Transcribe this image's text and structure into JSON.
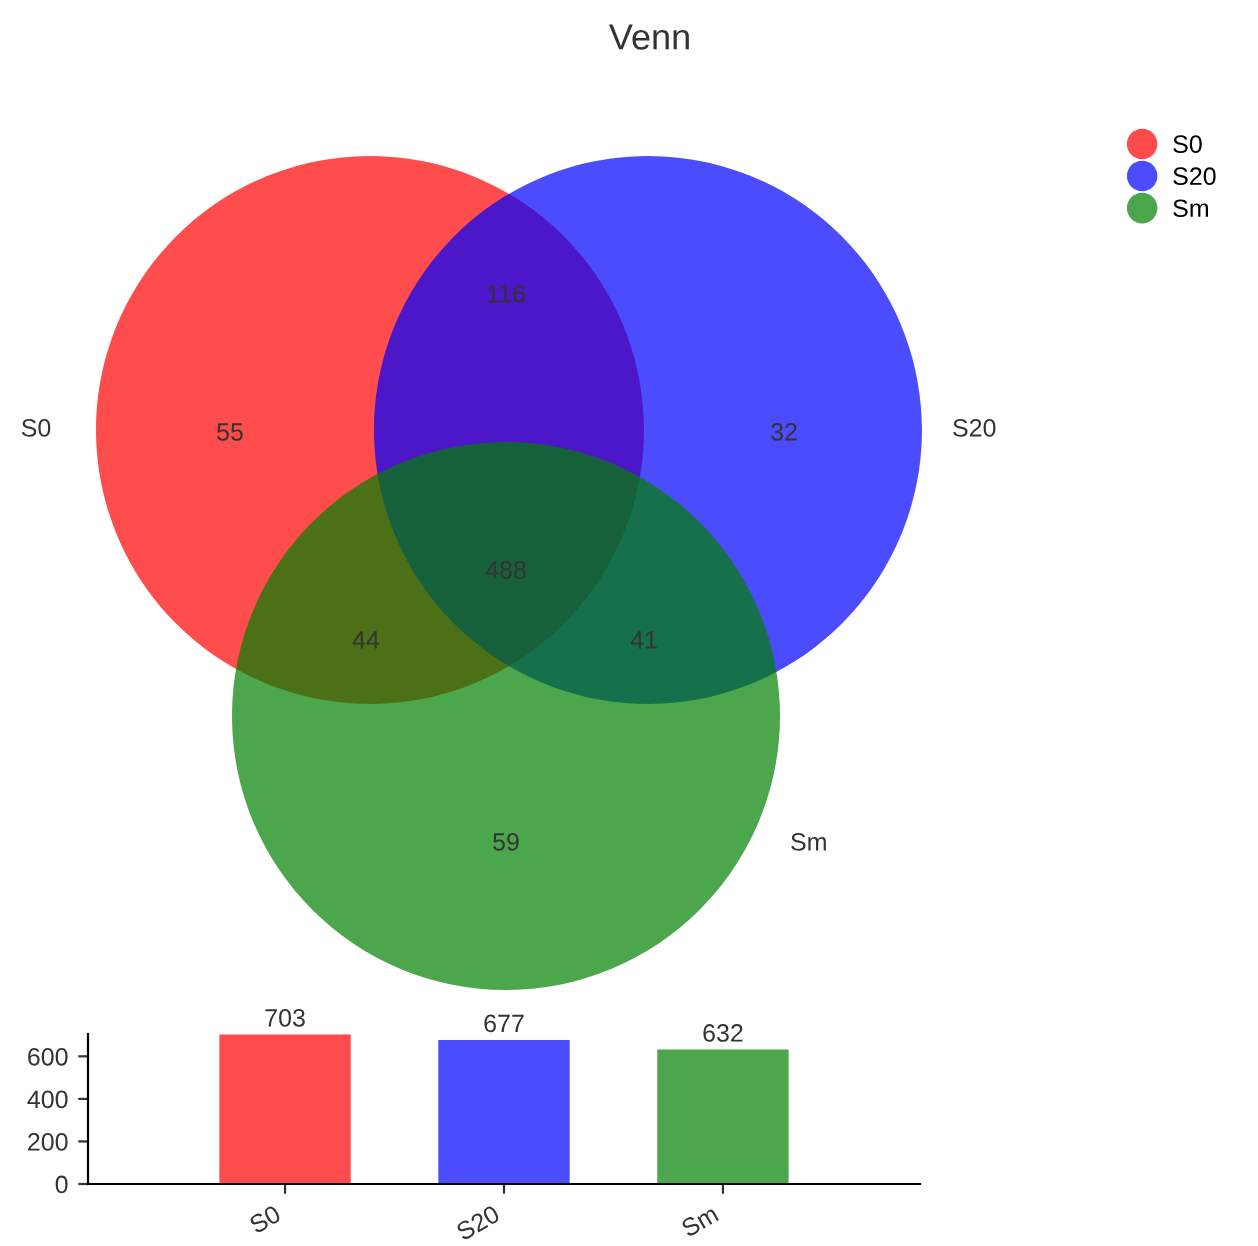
{
  "chart_data": [
    {
      "type": "other",
      "title": "Venn",
      "legend": "top right",
      "value_labels": [
        "55",
        "32",
        "59",
        "116",
        "44",
        "41",
        "488"
      ],
      "series": [
        {
          "name": "S0",
          "color": "#ff4b4b"
        },
        {
          "name": "S20",
          "color": "#4b4bff"
        },
        {
          "name": "Sm",
          "color": "#4ca64c"
        }
      ]
    },
    {
      "type": "bar",
      "categories": [
        "S0",
        "S20",
        "Sm"
      ],
      "values": [
        703,
        677,
        632
      ],
      "colors": [
        "#ff4b4b",
        "#4b4bff",
        "#4ca64c"
      ],
      "ylim": [
        0,
        705
      ],
      "yticks": [
        0,
        200,
        400,
        600
      ],
      "data_labels": true,
      "grid": false
    }
  ]
}
